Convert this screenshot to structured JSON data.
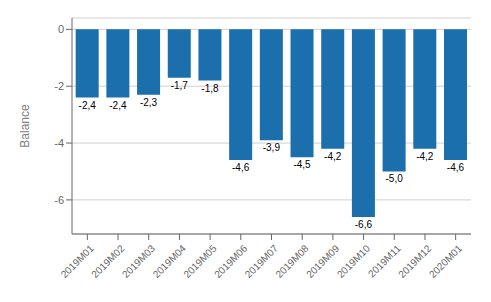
{
  "chart_data": {
    "type": "bar",
    "categories": [
      "2019M01",
      "2019M02",
      "2019M03",
      "2019M04",
      "2019M05",
      "2019M06",
      "2019M07",
      "2019M08",
      "2019M09",
      "2019M10",
      "2019M11",
      "2019M12",
      "2020M01"
    ],
    "values": [
      -2.4,
      -2.4,
      -2.3,
      -1.7,
      -1.8,
      -4.6,
      -3.9,
      -4.5,
      -4.2,
      -6.6,
      -5.0,
      -4.2,
      -4.6
    ],
    "value_labels": [
      "-2,4",
      "-2,4",
      "-2,3",
      "-1,7",
      "-1,8",
      "-4,6",
      "-3,9",
      "-4,5",
      "-4,2",
      "-6,6",
      "-5,0",
      "-4,2",
      "-4,6"
    ],
    "data_labels": true,
    "color": "#1B6FAD",
    "ylabel": "Balance",
    "ylim": [
      -7.2,
      0.4
    ],
    "yticks": [
      0,
      -2,
      -4,
      -6
    ],
    "grid": true
  }
}
